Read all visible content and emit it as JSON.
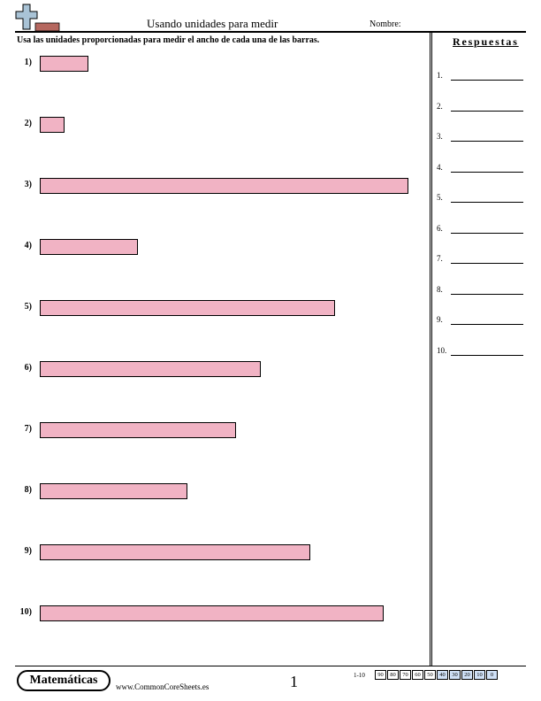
{
  "header": {
    "title": "Usando unidades para medir",
    "name_label": "Nombre:"
  },
  "instructions": "Usa las unidades proporcionadas para medir el ancho de cada una de las barras.",
  "problems": [
    {
      "label": "1)",
      "length_fraction": 0.133
    },
    {
      "label": "2)",
      "length_fraction": 0.067
    },
    {
      "label": "3)",
      "length_fraction": 1.0
    },
    {
      "label": "4)",
      "length_fraction": 0.267
    },
    {
      "label": "5)",
      "length_fraction": 0.8
    },
    {
      "label": "6)",
      "length_fraction": 0.6
    },
    {
      "label": "7)",
      "length_fraction": 0.533
    },
    {
      "label": "8)",
      "length_fraction": 0.4
    },
    {
      "label": "9)",
      "length_fraction": 0.733
    },
    {
      "label": "10)",
      "length_fraction": 0.933
    }
  ],
  "answers": {
    "title": "Respuestas",
    "labels": [
      "1.",
      "2.",
      "3.",
      "4.",
      "5.",
      "6.",
      "7.",
      "8.",
      "9.",
      "10."
    ]
  },
  "footer": {
    "brand": "Matemáticas",
    "site": "www.CommonCoreSheets.es",
    "page_number": "1",
    "range_label": "1-10",
    "scores": [
      "90",
      "80",
      "70",
      "60",
      "50",
      "40",
      "30",
      "20",
      "10",
      "0"
    ],
    "highlighted_scores": [
      "40",
      "30",
      "20",
      "10",
      "0"
    ]
  },
  "colors": {
    "bar_fill": "#f1b3c4",
    "logo_cross": "#a9c3d6",
    "logo_bar": "#b5675f",
    "score_highlight": "#cfe0f6"
  },
  "icons": {
    "logo": "plus-minus-logo-icon"
  }
}
